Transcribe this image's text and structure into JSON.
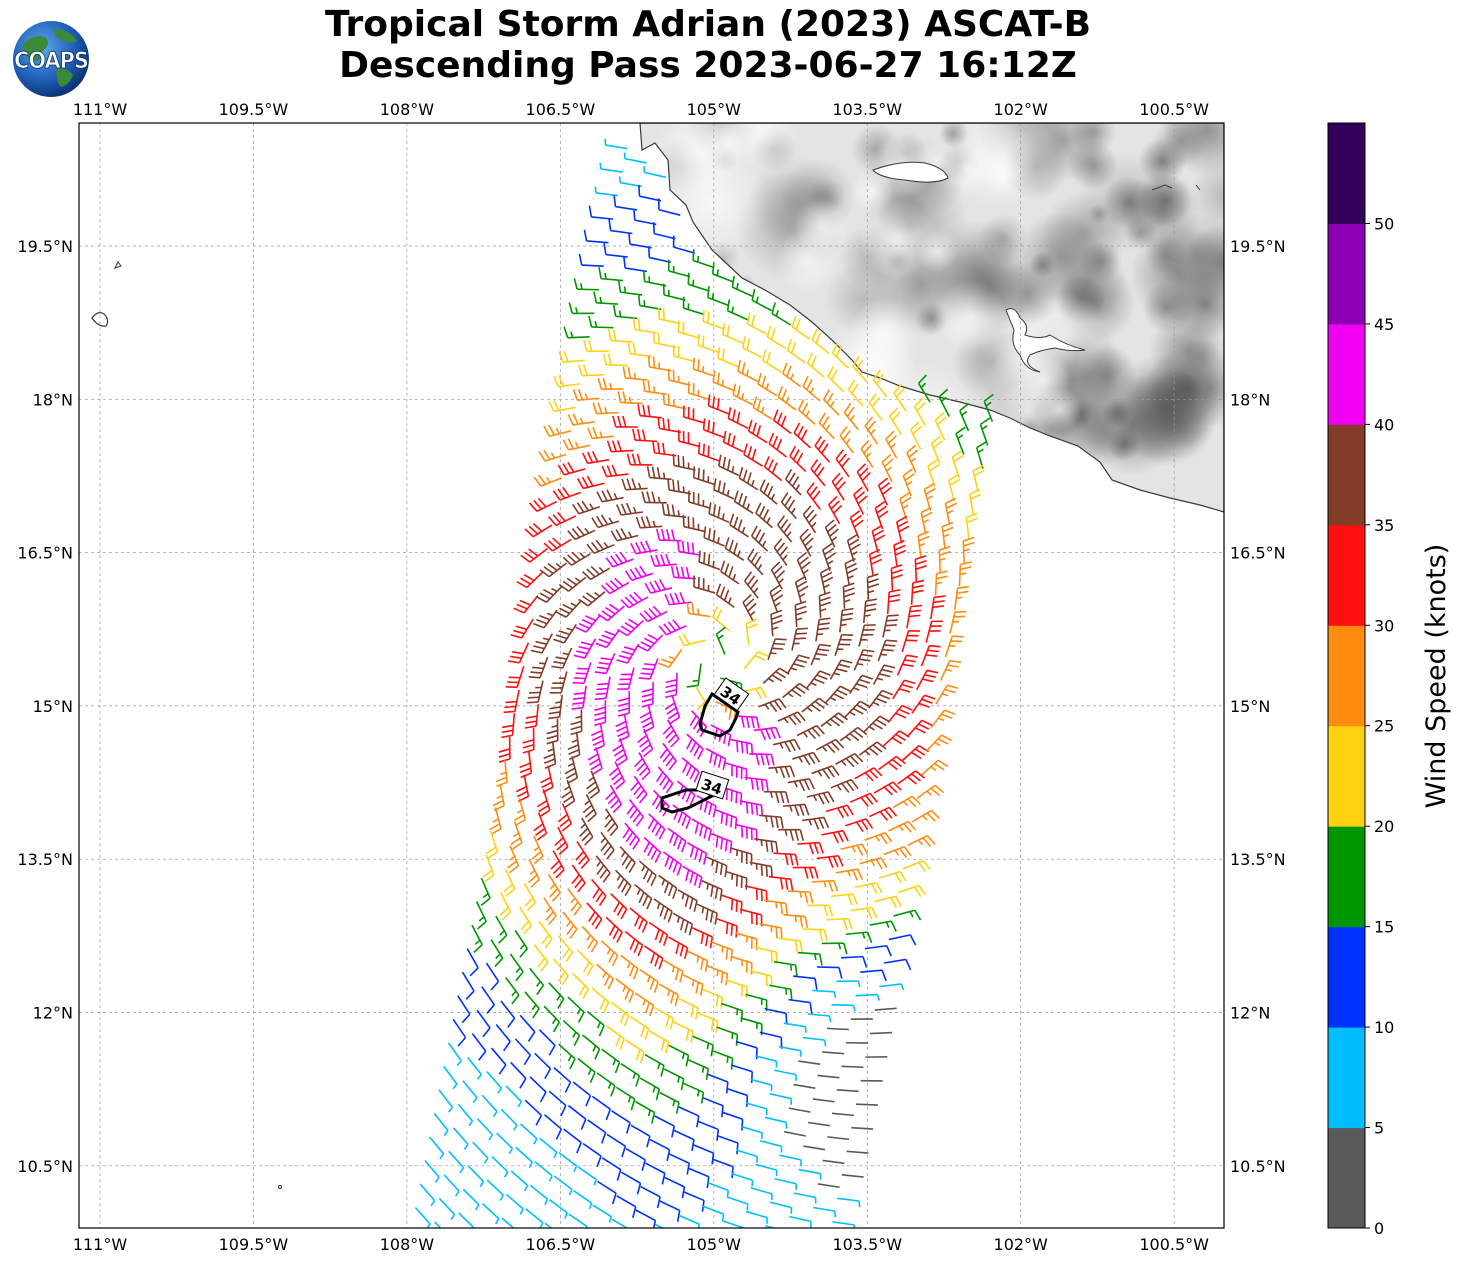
{
  "title_line1": "Tropical Storm Adrian (2023) ASCAT-B",
  "title_line2": "Descending Pass 2023-06-27 16:12Z",
  "logo_text": "COAPS",
  "map": {
    "lon_ticks": [
      "111°W",
      "109.5°W",
      "108°W",
      "106.5°W",
      "105°W",
      "103.5°W",
      "102°W",
      "100.5°W"
    ],
    "lat_ticks": [
      "19.5°N",
      "18°N",
      "16.5°N",
      "15°N",
      "13.5°N",
      "12°N",
      "10.5°N"
    ],
    "contour_labels": [
      "34",
      "34"
    ],
    "storm_center": {
      "lon": -104.95,
      "lat": 15.45
    }
  },
  "colorbar": {
    "label": "Wind Speed (knots)",
    "ticks": [
      "0",
      "5",
      "10",
      "15",
      "20",
      "25",
      "30",
      "35",
      "40",
      "45",
      "50"
    ],
    "colors": [
      "#595959",
      "#00bfff",
      "#0032ff",
      "#009600",
      "#ffd20f",
      "#ff8c0f",
      "#ff0f0f",
      "#823c28",
      "#f000f0",
      "#8c00b4",
      "#32005a"
    ]
  }
}
